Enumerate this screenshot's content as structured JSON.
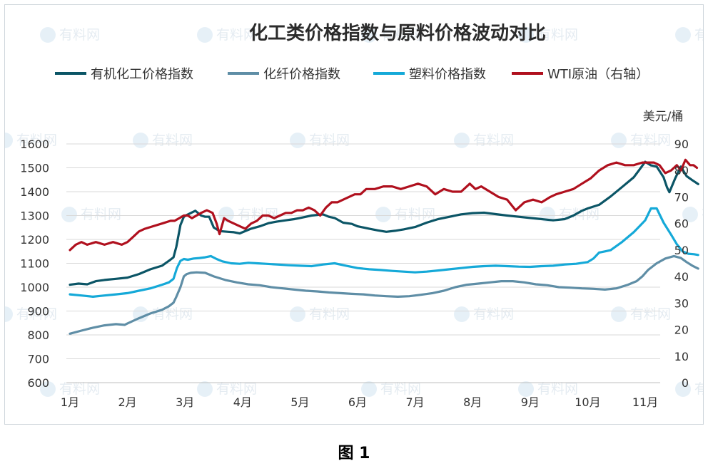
{
  "chart_data": {
    "type": "line",
    "title": "化工类价格指数与原料价格波动对比",
    "x_categories": [
      "1月",
      "2月",
      "3月",
      "4月",
      "5月",
      "6月",
      "7月",
      "8月",
      "9月",
      "10月",
      "11月"
    ],
    "left_axis": {
      "ylim": [
        600,
        1600
      ],
      "ticks": [
        "600",
        "700",
        "800",
        "900",
        "1000",
        "1100",
        "1200",
        "1300",
        "1400",
        "1500",
        "1600"
      ]
    },
    "right_axis": {
      "unit": "美元/桶",
      "ylim": [
        0,
        90
      ],
      "ticks": [
        "0",
        "10",
        "20",
        "30",
        "40",
        "50",
        "60",
        "70",
        "80",
        "90"
      ]
    },
    "grid": "horizontal",
    "legend_position": "top",
    "series": [
      {
        "name": "有机化工价格指数",
        "axis": "left",
        "color": "#0b5566",
        "x": [
          0,
          0.15,
          0.3,
          0.45,
          0.6,
          0.8,
          1,
          1.2,
          1.4,
          1.6,
          1.72,
          1.8,
          1.85,
          1.92,
          1.98,
          2.03,
          2.08,
          2.18,
          2.28,
          2.35,
          2.42,
          2.5,
          2.6,
          2.75,
          2.85,
          2.95,
          3,
          3.15,
          3.3,
          3.45,
          3.6,
          3.75,
          3.9,
          4,
          4.2,
          4.4,
          4.5,
          4.6,
          4.75,
          4.9,
          5,
          5.2,
          5.35,
          5.5,
          5.65,
          5.8,
          6,
          6.2,
          6.4,
          6.6,
          6.8,
          7,
          7.2,
          7.4,
          7.6,
          7.8,
          8,
          8.2,
          8.4,
          8.6,
          8.75,
          8.9,
          9,
          9.2,
          9.4,
          9.6,
          9.8,
          9.9,
          10,
          10.1,
          10.2,
          10.32,
          10.38,
          10.42,
          10.52,
          10.62,
          10.72,
          10.82,
          10.92
        ],
        "y": [
          1010,
          1015,
          1012,
          1025,
          1030,
          1035,
          1040,
          1055,
          1075,
          1090,
          1110,
          1125,
          1170,
          1260,
          1295,
          1302,
          1308,
          1320,
          1300,
          1295,
          1295,
          1250,
          1235,
          1232,
          1230,
          1225,
          1230,
          1245,
          1255,
          1268,
          1275,
          1280,
          1285,
          1290,
          1300,
          1305,
          1295,
          1290,
          1270,
          1265,
          1255,
          1245,
          1238,
          1232,
          1236,
          1242,
          1252,
          1270,
          1285,
          1295,
          1305,
          1310,
          1312,
          1306,
          1300,
          1295,
          1290,
          1285,
          1280,
          1285,
          1300,
          1320,
          1330,
          1345,
          1380,
          1420,
          1460,
          1492,
          1525,
          1510,
          1505,
          1460,
          1418,
          1398,
          1455,
          1505,
          1465,
          1448,
          1432
        ]
      },
      {
        "name": "化纤价格指数",
        "axis": "left",
        "color": "#5f8ea6",
        "x": [
          0,
          0.2,
          0.4,
          0.6,
          0.8,
          0.95,
          1,
          1.2,
          1.4,
          1.6,
          1.72,
          1.8,
          1.85,
          1.92,
          1.98,
          2.03,
          2.1,
          2.2,
          2.35,
          2.5,
          2.7,
          2.9,
          3.1,
          3.3,
          3.5,
          3.7,
          3.9,
          4.1,
          4.3,
          4.5,
          4.7,
          4.9,
          5.1,
          5.3,
          5.5,
          5.7,
          5.9,
          6.1,
          6.3,
          6.5,
          6.7,
          6.9,
          7.1,
          7.3,
          7.5,
          7.7,
          7.9,
          8.1,
          8.3,
          8.5,
          8.7,
          8.9,
          9.1,
          9.3,
          9.5,
          9.7,
          9.85,
          9.95,
          10.05,
          10.2,
          10.35,
          10.5,
          10.62,
          10.72,
          10.82,
          10.92
        ],
        "y": [
          805,
          818,
          830,
          840,
          845,
          842,
          848,
          870,
          890,
          905,
          920,
          935,
          960,
          1000,
          1045,
          1055,
          1060,
          1062,
          1060,
          1045,
          1030,
          1020,
          1012,
          1008,
          1000,
          995,
          990,
          985,
          982,
          978,
          975,
          972,
          970,
          965,
          962,
          960,
          962,
          968,
          975,
          985,
          1000,
          1010,
          1015,
          1020,
          1025,
          1025,
          1020,
          1012,
          1008,
          1000,
          998,
          995,
          993,
          990,
          995,
          1010,
          1025,
          1045,
          1072,
          1100,
          1120,
          1130,
          1122,
          1105,
          1090,
          1078
        ]
      },
      {
        "name": "塑料价格指数",
        "axis": "left",
        "color": "#15a9d8",
        "x": [
          0,
          0.2,
          0.4,
          0.6,
          0.8,
          1,
          1.2,
          1.4,
          1.6,
          1.72,
          1.8,
          1.86,
          1.92,
          1.98,
          2.05,
          2.15,
          2.25,
          2.35,
          2.45,
          2.55,
          2.65,
          2.8,
          2.95,
          3.1,
          3.25,
          3.4,
          3.6,
          3.8,
          4,
          4.2,
          4.4,
          4.6,
          4.8,
          5,
          5.2,
          5.4,
          5.6,
          5.8,
          6,
          6.2,
          6.4,
          6.6,
          6.8,
          7,
          7.2,
          7.4,
          7.6,
          7.8,
          8,
          8.2,
          8.4,
          8.6,
          8.8,
          9,
          9.1,
          9.2,
          9.3,
          9.4,
          9.6,
          9.8,
          9.92,
          10,
          10.1,
          10.2,
          10.32,
          10.45,
          10.55,
          10.65,
          10.75,
          10.85,
          10.92
        ],
        "y": [
          970,
          965,
          960,
          965,
          970,
          975,
          985,
          995,
          1010,
          1020,
          1035,
          1080,
          1110,
          1118,
          1115,
          1120,
          1122,
          1125,
          1130,
          1118,
          1108,
          1100,
          1098,
          1102,
          1100,
          1098,
          1095,
          1092,
          1090,
          1088,
          1095,
          1100,
          1090,
          1080,
          1075,
          1072,
          1068,
          1065,
          1062,
          1065,
          1070,
          1075,
          1080,
          1085,
          1088,
          1090,
          1088,
          1086,
          1085,
          1088,
          1090,
          1095,
          1098,
          1105,
          1120,
          1145,
          1150,
          1155,
          1190,
          1230,
          1260,
          1280,
          1330,
          1330,
          1270,
          1220,
          1180,
          1150,
          1140,
          1138,
          1135
        ]
      },
      {
        "name": "WTI原油（右轴）",
        "axis": "right",
        "color": "#b0101e",
        "x": [
          0,
          0.1,
          0.2,
          0.3,
          0.45,
          0.6,
          0.75,
          0.9,
          1,
          1.1,
          1.2,
          1.3,
          1.45,
          1.6,
          1.75,
          1.82,
          1.9,
          1.98,
          2.05,
          2.12,
          2.2,
          2.28,
          2.38,
          2.48,
          2.55,
          2.6,
          2.68,
          2.75,
          2.85,
          2.95,
          3.05,
          3.15,
          3.25,
          3.35,
          3.45,
          3.55,
          3.65,
          3.75,
          3.85,
          3.95,
          4.05,
          4.15,
          4.25,
          4.35,
          4.45,
          4.55,
          4.65,
          4.75,
          4.85,
          4.95,
          5.05,
          5.15,
          5.3,
          5.45,
          5.6,
          5.75,
          5.9,
          6.05,
          6.2,
          6.35,
          6.5,
          6.65,
          6.8,
          6.95,
          7.05,
          7.15,
          7.3,
          7.45,
          7.6,
          7.75,
          7.9,
          8.05,
          8.2,
          8.35,
          8.45,
          8.6,
          8.75,
          8.9,
          9.05,
          9.2,
          9.35,
          9.5,
          9.65,
          9.8,
          9.95,
          10.05,
          10.15,
          10.25,
          10.35,
          10.45,
          10.55,
          10.62,
          10.7,
          10.78,
          10.84,
          10.9
        ],
        "y": [
          50,
          52,
          53,
          52,
          53,
          52,
          53,
          52,
          53,
          55,
          57,
          58,
          59,
          60,
          61,
          61,
          62,
          63,
          63,
          62,
          63,
          64,
          65,
          64,
          60,
          56,
          62,
          61,
          60,
          59,
          58,
          60,
          61,
          63,
          63,
          62,
          63,
          64,
          64,
          65,
          65,
          66,
          65,
          63,
          66,
          68,
          68,
          69,
          70,
          71,
          71,
          73,
          73,
          74,
          74,
          73,
          74,
          75,
          74,
          71,
          73,
          72,
          72,
          75,
          73,
          74,
          72,
          70,
          69,
          65,
          68,
          69,
          68,
          70,
          71,
          72,
          73,
          75,
          77,
          80,
          82,
          83,
          82,
          82,
          83,
          83,
          83,
          82,
          79,
          80,
          82,
          80,
          84,
          82,
          82,
          81
        ]
      }
    ]
  },
  "watermark_text": "有料网",
  "figure_caption": "图 1"
}
